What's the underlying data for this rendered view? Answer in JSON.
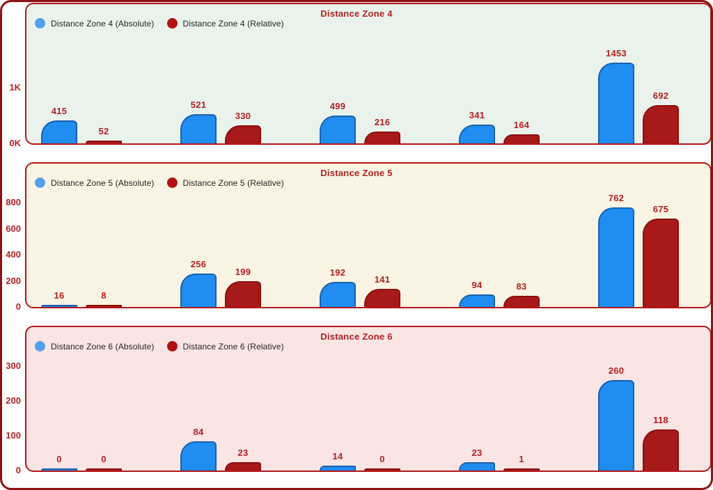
{
  "colors": {
    "accent_red_text": "#b42020",
    "outer_border": "#8f1212",
    "panel_border": "#b11717",
    "legend_text": "#222222",
    "page_background": "#ffffff"
  },
  "chart_data": [
    {
      "type": "bar",
      "title": "Distance Zone 4",
      "background": "#e9f3ec",
      "grid": false,
      "legend_position": "top-left",
      "ylim": [
        0,
        1500
      ],
      "yticks": [
        {
          "label": "0K",
          "value": 0
        },
        {
          "label": "1K",
          "value": 1000
        }
      ],
      "series": [
        {
          "name": "Distance Zone 4 (Absolute)",
          "color": "#1f8df2",
          "border": "#1a61ad",
          "dot": "#55a0ea",
          "values": [
            415,
            521,
            499,
            341,
            1453
          ]
        },
        {
          "name": "Distance Zone 4 (Relative)",
          "color": "#a81919",
          "border": "#8c0f0f",
          "dot": "#b01212",
          "values": [
            52,
            330,
            216,
            164,
            692
          ]
        }
      ]
    },
    {
      "type": "bar",
      "title": "Distance Zone 5",
      "background": "#f9f4e3",
      "grid": false,
      "legend_position": "top-left",
      "ylim": [
        0,
        800
      ],
      "yticks": [
        {
          "label": "0",
          "value": 0
        },
        {
          "label": "200",
          "value": 200
        },
        {
          "label": "400",
          "value": 400
        },
        {
          "label": "600",
          "value": 600
        },
        {
          "label": "800",
          "value": 800
        }
      ],
      "series": [
        {
          "name": "Distance Zone 5 (Absolute)",
          "color": "#1f8df2",
          "border": "#1a61ad",
          "dot": "#55a0ea",
          "values": [
            16,
            256,
            192,
            94,
            762
          ]
        },
        {
          "name": "Distance Zone 5 (Relative)",
          "color": "#a81919",
          "border": "#8c0f0f",
          "dot": "#b01212",
          "values": [
            8,
            199,
            141,
            83,
            675
          ]
        }
      ]
    },
    {
      "type": "bar",
      "title": "Distance Zone 6",
      "background": "#fae5e5",
      "grid": false,
      "legend_position": "top-left",
      "ylim": [
        0,
        300
      ],
      "yticks": [
        {
          "label": "0",
          "value": 0
        },
        {
          "label": "100",
          "value": 100
        },
        {
          "label": "200",
          "value": 200
        },
        {
          "label": "300",
          "value": 300
        }
      ],
      "series": [
        {
          "name": "Distance Zone 6 (Absolute)",
          "color": "#1f8df2",
          "border": "#1a61ad",
          "dot": "#55a0ea",
          "values": [
            0,
            84,
            14,
            23,
            260
          ]
        },
        {
          "name": "Distance Zone 6 (Relative)",
          "color": "#a81919",
          "border": "#8c0f0f",
          "dot": "#b01212",
          "values": [
            0,
            23,
            0,
            1,
            118
          ]
        }
      ]
    }
  ]
}
